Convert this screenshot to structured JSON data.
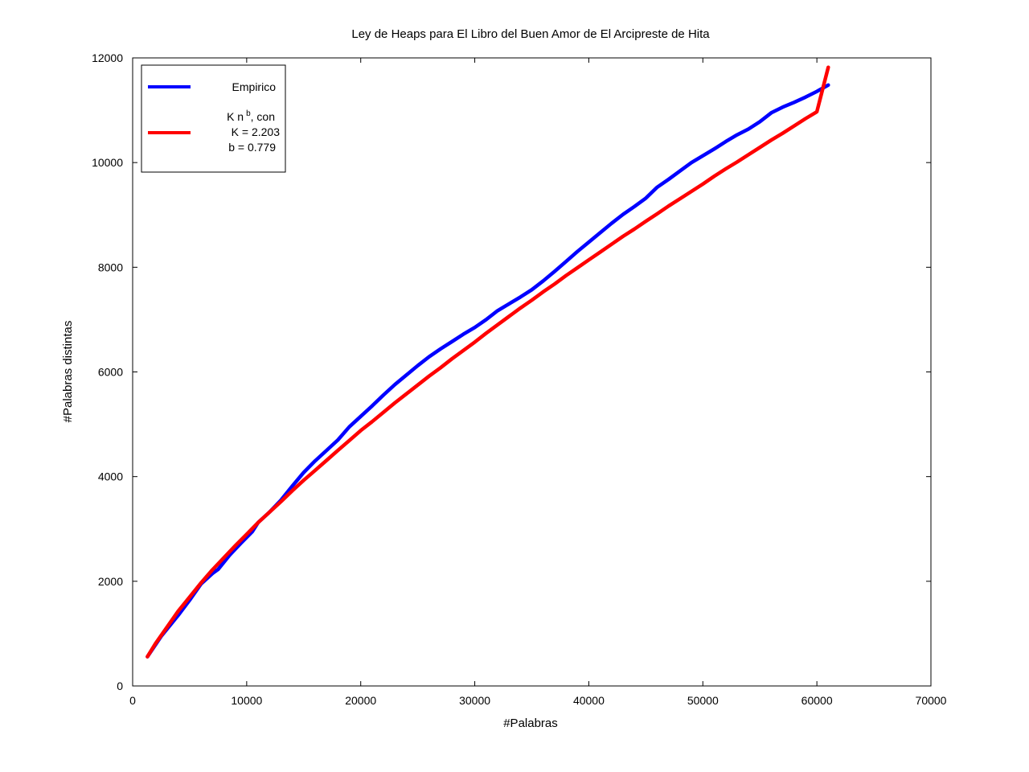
{
  "chart_data": {
    "type": "line",
    "title": "Ley de Heaps para El Libro del Buen Amor de El Arcipreste de Hita",
    "xlabel": "#Palabras",
    "ylabel": "#Palabras distintas",
    "xlim": [
      0,
      70000
    ],
    "ylim": [
      0,
      12000
    ],
    "xticks": [
      "0",
      "10000",
      "20000",
      "30000",
      "40000",
      "50000",
      "60000",
      "70000"
    ],
    "yticks": [
      "0",
      "2000",
      "4000",
      "6000",
      "8000",
      "10000",
      "12000"
    ],
    "grid": false,
    "legend_position": "top-left",
    "series": [
      {
        "name": "Empirico",
        "color": "#0000ff",
        "x": [
          1300,
          2500,
          4000,
          5000,
          6000,
          7000,
          7500,
          8500,
          9500,
          10500,
          11000,
          12000,
          13000,
          14000,
          15000,
          16000,
          17000,
          18000,
          19000,
          20000,
          21000,
          22000,
          23000,
          24000,
          25000,
          26000,
          27000,
          28000,
          29000,
          30000,
          31000,
          32000,
          33000,
          34000,
          35000,
          36000,
          37000,
          38000,
          39000,
          40000,
          41000,
          42000,
          43000,
          44000,
          45000,
          46000,
          47000,
          48000,
          49000,
          50000,
          51000,
          52000,
          53000,
          54000,
          55000,
          56000,
          57000,
          58000,
          59000,
          60000,
          61000
        ],
        "y": [
          560,
          950,
          1350,
          1640,
          1950,
          2150,
          2230,
          2500,
          2730,
          2950,
          3120,
          3320,
          3550,
          3820,
          4080,
          4300,
          4500,
          4700,
          4950,
          5150,
          5350,
          5560,
          5760,
          5940,
          6120,
          6290,
          6440,
          6580,
          6720,
          6850,
          7000,
          7170,
          7300,
          7430,
          7570,
          7740,
          7920,
          8110,
          8300,
          8480,
          8660,
          8840,
          9010,
          9160,
          9320,
          9530,
          9680,
          9840,
          10000,
          10130,
          10260,
          10400,
          10530,
          10640,
          10780,
          10950,
          11060,
          11150,
          11250,
          11360,
          11480
        ]
      },
      {
        "name": "K n^b, con K = 2.203 b = 0.779",
        "color": "#ff0000",
        "x": [
          1300,
          2000,
          3000,
          4000,
          5000,
          6000,
          7000,
          8000,
          9000,
          10000,
          11000,
          12000,
          13000,
          14000,
          15000,
          16000,
          17000,
          18000,
          19000,
          20000,
          21000,
          22000,
          23000,
          24000,
          25000,
          26000,
          27000,
          28000,
          29000,
          30000,
          31000,
          32000,
          33000,
          34000,
          35000,
          36000,
          37000,
          38000,
          39000,
          40000,
          41000,
          42000,
          43000,
          44000,
          45000,
          46000,
          47000,
          48000,
          49000,
          50000,
          51000,
          52000,
          53000,
          54000,
          55000,
          56000,
          57000,
          58000,
          59000,
          60000,
          61000
        ],
        "y": [
          560,
          810,
          1120,
          1430,
          1700,
          1970,
          2220,
          2450,
          2680,
          2900,
          3120,
          3320,
          3520,
          3730,
          3930,
          4120,
          4310,
          4500,
          4690,
          4880,
          5050,
          5230,
          5410,
          5580,
          5750,
          5920,
          6080,
          6250,
          6410,
          6570,
          6740,
          6900,
          7060,
          7220,
          7370,
          7530,
          7680,
          7840,
          7990,
          8140,
          8290,
          8440,
          8590,
          8730,
          8880,
          9020,
          9170,
          9310,
          9450,
          9590,
          9740,
          9880,
          10010,
          10150,
          10290,
          10430,
          10560,
          10700,
          10840,
          10970,
          11820
        ]
      }
    ],
    "legend": {
      "entries": [
        {
          "label": "Empirico",
          "color": "#0000ff"
        },
        {
          "label_main": "K n",
          "label_sup": "b",
          "label_tail": ", con",
          "line2": "K = 2.203",
          "line3": "b = 0.779",
          "color": "#ff0000"
        }
      ]
    }
  }
}
